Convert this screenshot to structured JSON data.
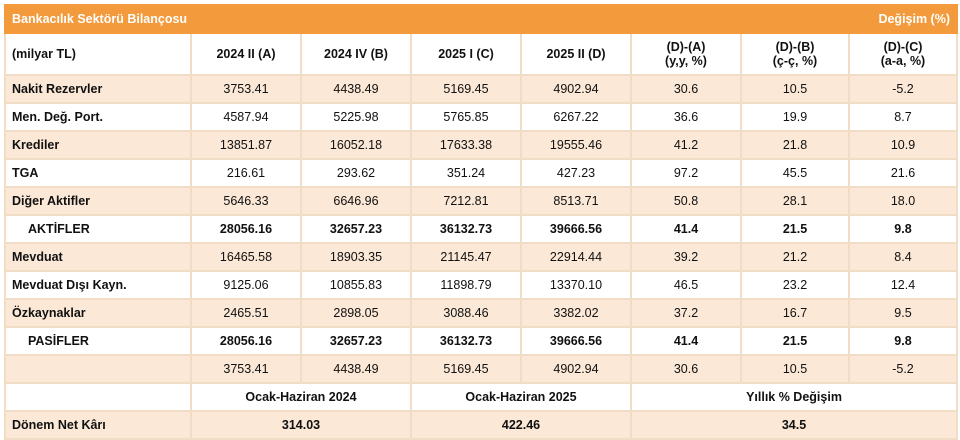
{
  "title": "Bankacılık Sektörü Bilançosu",
  "change_title": "Değişim (%)",
  "headers": [
    "(milyar TL)",
    "2024 II (A)",
    "2024 IV (B)",
    "2025 I (C)",
    "2025 II (D)",
    "(D)-(A)\n(y,y, %)",
    "(D)-(B)\n(ç-ç, %)",
    "(D)-(C)\n(a-a, %)"
  ],
  "rows": [
    {
      "label": "Nakit Rezervler",
      "values": [
        "3753.41",
        "4438.49",
        "5169.45",
        "4902.94",
        "30.6",
        "10.5",
        "-5.2"
      ]
    },
    {
      "label": "Men. Değ. Port.",
      "values": [
        "4587.94",
        "5225.98",
        "5765.85",
        "6267.22",
        "36.6",
        "19.9",
        "8.7"
      ]
    },
    {
      "label": "Krediler",
      "values": [
        "13851.87",
        "16052.18",
        "17633.38",
        "19555.46",
        "41.2",
        "21.8",
        "10.9"
      ]
    },
    {
      "label": "TGA",
      "values": [
        "216.61",
        "293.62",
        "351.24",
        "427.23",
        "97.2",
        "45.5",
        "21.6"
      ]
    },
    {
      "label": "Diğer Aktifler",
      "values": [
        "5646.33",
        "6646.96",
        "7212.81",
        "8513.71",
        "50.8",
        "28.1",
        "18.0"
      ]
    },
    {
      "label": "AKTİFLER",
      "total": true,
      "values": [
        "28056.16",
        "32657.23",
        "36132.73",
        "39666.56",
        "41.4",
        "21.5",
        "9.8"
      ]
    },
    {
      "label": "Mevduat",
      "values": [
        "16465.58",
        "18903.35",
        "21145.47",
        "22914.44",
        "39.2",
        "21.2",
        "8.4"
      ]
    },
    {
      "label": "Mevduat Dışı Kayn.",
      "values": [
        "9125.06",
        "10855.83",
        "11898.79",
        "13370.10",
        "46.5",
        "23.2",
        "12.4"
      ]
    },
    {
      "label": "Özkaynaklar",
      "values": [
        "2465.51",
        "2898.05",
        "3088.46",
        "3382.02",
        "37.2",
        "16.7",
        "9.5"
      ]
    },
    {
      "label": "PASİFLER",
      "total": true,
      "values": [
        "28056.16",
        "32657.23",
        "36132.73",
        "39666.56",
        "41.4",
        "21.5",
        "9.8"
      ]
    },
    {
      "label": "",
      "values": [
        "3753.41",
        "4438.49",
        "5169.45",
        "4902.94",
        "30.6",
        "10.5",
        "-5.2"
      ]
    }
  ],
  "sub_headers": [
    "Ocak-Haziran 2024",
    "Ocak-Haziran 2025",
    "Yıllık % Değişim"
  ],
  "net": {
    "label": "Dönem Net Kârı",
    "values": [
      "314.03",
      "422.46",
      "34.5"
    ]
  }
}
